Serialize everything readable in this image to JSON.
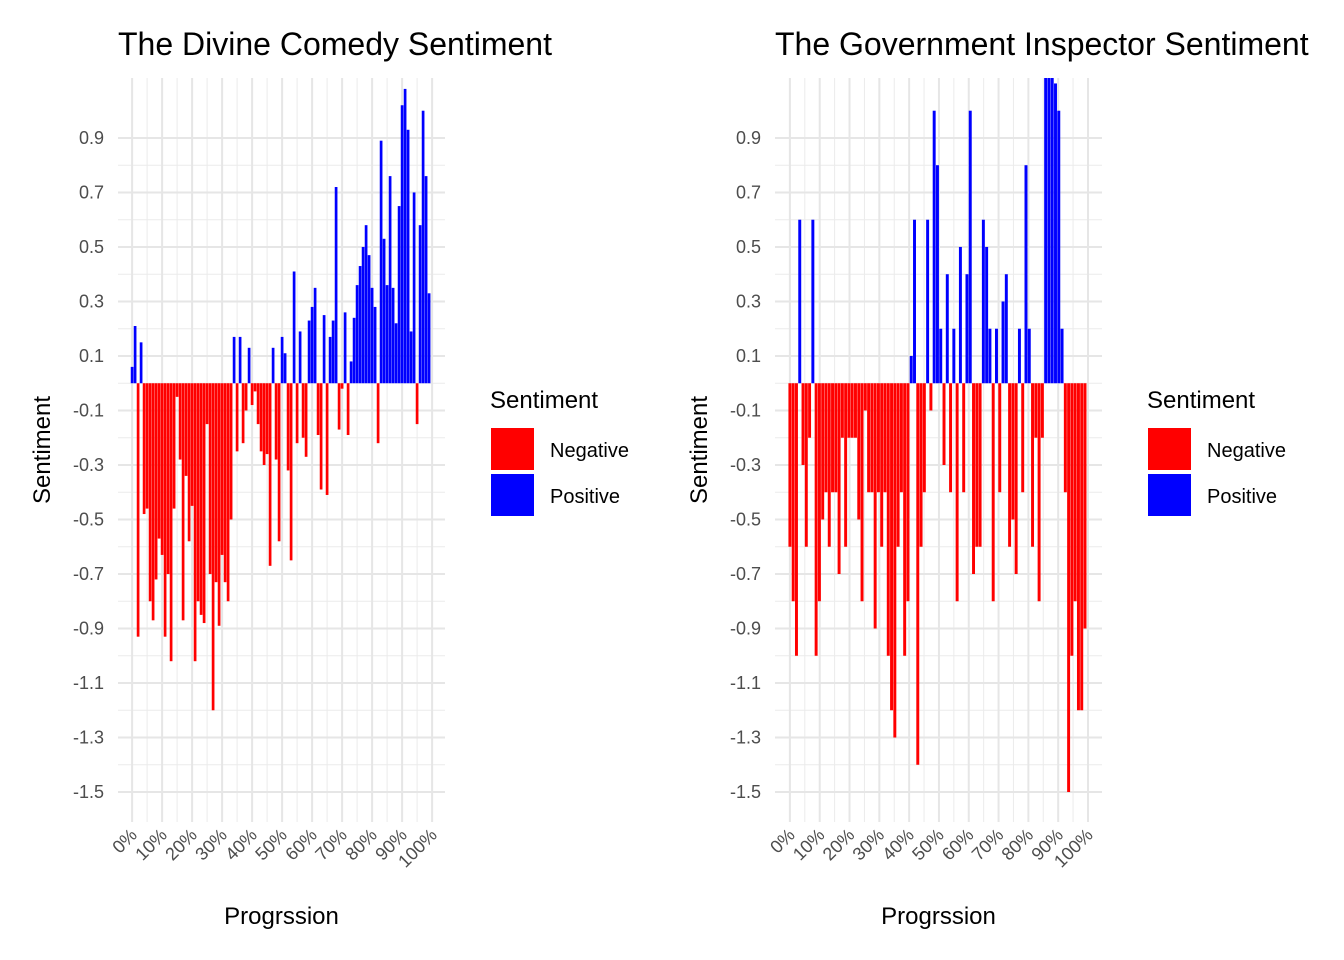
{
  "chart_data": [
    {
      "type": "bar",
      "title": "The Divine Comedy Sentiment",
      "x_label": "Progrssion",
      "y_label": "Sentiment",
      "legend_title": "Sentiment",
      "legend": [
        {
          "name": "Negative",
          "color": "#ff0000"
        },
        {
          "name": "Positive",
          "color": "#0000ff"
        }
      ],
      "x": [
        0,
        1,
        2,
        3,
        4,
        5,
        6,
        7,
        8,
        9,
        10,
        11,
        12,
        13,
        14,
        15,
        16,
        17,
        18,
        19,
        20,
        21,
        22,
        23,
        24,
        25,
        26,
        27,
        28,
        29,
        30,
        31,
        32,
        33,
        34,
        35,
        36,
        37,
        38,
        39,
        40,
        41,
        42,
        43,
        44,
        45,
        46,
        47,
        48,
        49,
        50,
        51,
        52,
        53,
        54,
        55,
        56,
        57,
        58,
        59,
        60,
        61,
        62,
        63,
        64,
        65,
        66,
        67,
        68,
        69,
        70,
        71,
        72,
        73,
        74,
        75,
        76,
        77,
        78,
        79,
        80,
        81,
        82,
        83,
        84,
        85,
        86,
        87,
        88,
        89,
        90,
        91,
        92,
        93,
        94,
        95,
        96,
        97,
        98,
        99
      ],
      "values": [
        0.06,
        0.21,
        -0.93,
        0.15,
        -0.48,
        -0.46,
        -0.8,
        -0.87,
        -0.72,
        -0.57,
        -0.63,
        -0.93,
        -0.7,
        -1.02,
        -0.46,
        -0.05,
        -0.28,
        -0.87,
        -0.34,
        -0.58,
        -0.45,
        -1.02,
        -0.8,
        -0.85,
        -0.88,
        -0.15,
        -0.7,
        -1.2,
        -0.73,
        -0.89,
        -0.63,
        -0.73,
        -0.8,
        -0.5,
        0.17,
        -0.25,
        0.17,
        -0.22,
        -0.1,
        0.13,
        -0.08,
        -0.03,
        -0.15,
        -0.25,
        -0.3,
        -0.26,
        -0.67,
        0.13,
        -0.28,
        -0.58,
        0.17,
        0.11,
        -0.32,
        -0.65,
        0.41,
        -0.22,
        0.19,
        -0.2,
        -0.27,
        0.23,
        0.28,
        0.35,
        -0.19,
        -0.39,
        0.25,
        -0.41,
        0.17,
        0.23,
        0.72,
        -0.17,
        -0.02,
        0.26,
        -0.19,
        0.08,
        0.24,
        0.36,
        0.43,
        0.5,
        0.58,
        0.47,
        0.35,
        0.28,
        -0.22,
        0.89,
        0.53,
        0.36,
        0.76,
        0.35,
        0.22,
        0.65,
        1.02,
        1.08,
        0.93,
        0.19,
        0.7,
        -0.15,
        0.58,
        1.0,
        0.76,
        0.33
      ],
      "xlim": [
        -4.7,
        104.3
      ],
      "ylim": [
        -1.61,
        1.12
      ],
      "xticks": [
        {
          "value": 0,
          "label": "0%"
        },
        {
          "value": 10,
          "label": "10%"
        },
        {
          "value": 20,
          "label": "20%"
        },
        {
          "value": 30,
          "label": "30%"
        },
        {
          "value": 40,
          "label": "40%"
        },
        {
          "value": 50,
          "label": "50%"
        },
        {
          "value": 60,
          "label": "60%"
        },
        {
          "value": 70,
          "label": "70%"
        },
        {
          "value": 80,
          "label": "80%"
        },
        {
          "value": 90,
          "label": "90%"
        },
        {
          "value": 100,
          "label": "100%"
        }
      ],
      "yticks": [
        -1.5,
        -1.3,
        -1.1,
        -0.9,
        -0.7,
        -0.5,
        -0.3,
        -0.1,
        0.1,
        0.3,
        0.5,
        0.7,
        0.9
      ],
      "grid": true
    },
    {
      "type": "bar",
      "title": "The Government Inspector Sentiment",
      "x_label": "Progrssion",
      "y_label": "Sentiment",
      "legend_title": "Sentiment",
      "legend": [
        {
          "name": "Negative",
          "color": "#ff0000"
        },
        {
          "name": "Positive",
          "color": "#0000ff"
        }
      ],
      "x": [
        0,
        1.1,
        2.2,
        3.3,
        4.4,
        5.5,
        6.6,
        7.7,
        8.8,
        9.9,
        11,
        12.1,
        13.2,
        14.3,
        15.4,
        16.5,
        17.6,
        18.7,
        19.8,
        20.9,
        22,
        23.1,
        24.2,
        25.3,
        26.4,
        27.5,
        28.6,
        29.7,
        30.8,
        31.9,
        33,
        34.1,
        35.2,
        36.3,
        37.4,
        38.5,
        39.6,
        40.7,
        41.8,
        42.9,
        44,
        45.1,
        46.2,
        47.3,
        48.4,
        49.5,
        50.6,
        51.7,
        52.8,
        53.9,
        55,
        56.1,
        57.2,
        58.3,
        59.4,
        60.5,
        61.6,
        62.7,
        63.8,
        64.9,
        66,
        67.1,
        68.2,
        69.3,
        70.4,
        71.5,
        72.6,
        73.7,
        74.8,
        75.9,
        77,
        78.1,
        79.2,
        80.3,
        81.4,
        82.5,
        83.6,
        84.7,
        85.8,
        86.9,
        88,
        89.1,
        90.2,
        91.3,
        92.4,
        93.5,
        94.6,
        95.7,
        96.8,
        97.9,
        99
      ],
      "values": [
        -0.6,
        -0.8,
        -1.0,
        0.6,
        -0.3,
        -0.6,
        -0.2,
        0.6,
        -1.0,
        -0.8,
        -0.5,
        -0.4,
        -0.6,
        -0.4,
        -0.4,
        -0.7,
        -0.2,
        -0.6,
        -0.2,
        -0.2,
        -0.2,
        -0.5,
        -0.8,
        -0.1,
        -0.4,
        -0.4,
        -0.9,
        -0.4,
        -0.6,
        -0.4,
        -1.0,
        -1.2,
        -1.3,
        -0.6,
        -0.4,
        -1.0,
        -0.8,
        0.1,
        0.6,
        -1.4,
        -0.6,
        -0.4,
        0.6,
        -0.1,
        1.0,
        0.8,
        0.2,
        -0.3,
        0.4,
        -0.4,
        0.2,
        -0.8,
        0.5,
        -0.4,
        0.4,
        1.0,
        -0.7,
        -0.6,
        -0.6,
        0.6,
        0.5,
        0.2,
        -0.8,
        0.2,
        -0.4,
        0.3,
        0.4,
        -0.6,
        -0.5,
        -0.7,
        0.2,
        -0.4,
        0.8,
        0.2,
        -0.6,
        -0.2,
        -0.8,
        -0.2,
        1.12,
        1.12,
        1.12,
        1.1,
        1.0,
        0.2,
        -0.4,
        -1.5,
        -1.0,
        -0.8,
        -1.2,
        -1.2,
        -0.9
      ],
      "xlim": [
        -5,
        104.7
      ],
      "ylim": [
        -1.61,
        1.12
      ],
      "xticks": [
        {
          "value": 0,
          "label": "0%"
        },
        {
          "value": 10,
          "label": "10%"
        },
        {
          "value": 20,
          "label": "20%"
        },
        {
          "value": 30,
          "label": "30%"
        },
        {
          "value": 40,
          "label": "40%"
        },
        {
          "value": 50,
          "label": "50%"
        },
        {
          "value": 60,
          "label": "60%"
        },
        {
          "value": 70,
          "label": "70%"
        },
        {
          "value": 80,
          "label": "80%"
        },
        {
          "value": 90,
          "label": "90%"
        },
        {
          "value": 100,
          "label": "100%"
        }
      ],
      "yticks": [
        -1.5,
        -1.3,
        -1.1,
        -0.9,
        -0.7,
        -0.5,
        -0.3,
        -0.1,
        0.1,
        0.3,
        0.5,
        0.7,
        0.9
      ],
      "grid": true
    }
  ]
}
